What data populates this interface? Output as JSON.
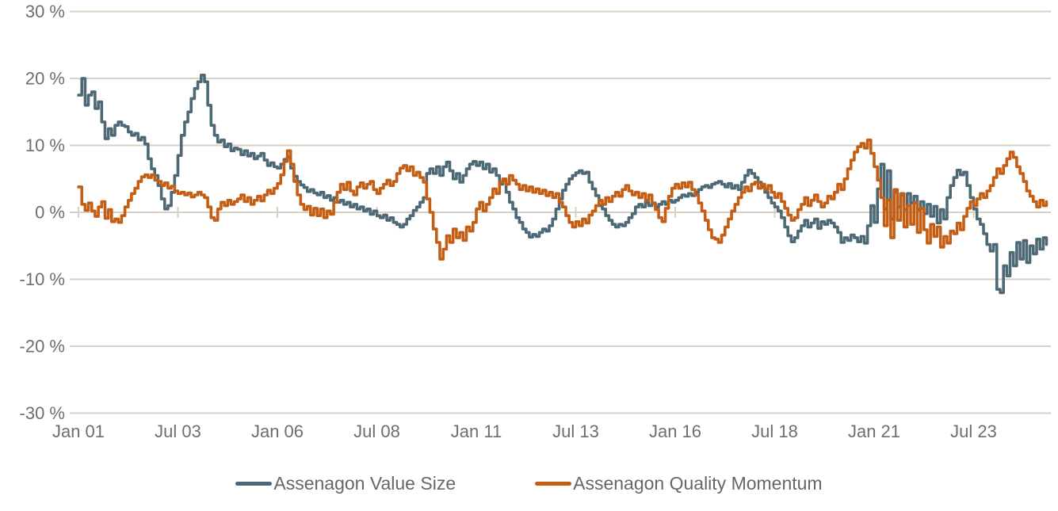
{
  "chart_data": {
    "type": "line",
    "title": "",
    "background": "#ffffff",
    "grid_color": "#d8d1c3",
    "label_color": "#6e6e6e",
    "x_axis": {
      "start": "Jan 2001",
      "end": "May 2025",
      "points_per_year": 12,
      "tick_labels": [
        "Jan 01",
        "Jul 03",
        "Jan 06",
        "Jul 08",
        "Jan 11",
        "Jul 13",
        "Jan 16",
        "Jul 18",
        "Jan 21",
        "Jul 23"
      ],
      "tick_month_index": [
        0,
        30,
        60,
        90,
        120,
        150,
        180,
        210,
        240,
        270
      ]
    },
    "y_axis": {
      "unit": "%",
      "range": [
        -30,
        30
      ],
      "tick_values": [
        30,
        20,
        10,
        0,
        -10,
        -20,
        -30
      ],
      "tick_labels": [
        "30 %",
        "20 %",
        "10 %",
        "0 %",
        "-10 %",
        "-20 %",
        "-30 %"
      ],
      "grid": true
    },
    "legend_position": "bottom",
    "series": [
      {
        "name": "Assenagon Value Size",
        "color": "#4d6975",
        "values": [
          17.5,
          20.0,
          16.0,
          17.5,
          18.0,
          15.5,
          16.5,
          13.5,
          11.0,
          12.5,
          11.5,
          13.0,
          13.5,
          13.0,
          12.8,
          12.0,
          11.5,
          11.8,
          10.8,
          11.2,
          10.2,
          8.0,
          6.5,
          5.5,
          4.0,
          2.0,
          0.5,
          1.0,
          3.0,
          5.5,
          8.5,
          11.5,
          13.5,
          15.0,
          17.0,
          18.5,
          19.5,
          20.5,
          19.5,
          16.0,
          13.0,
          11.5,
          10.5,
          10.8,
          9.8,
          10.2,
          9.2,
          9.6,
          9.4,
          8.6,
          9.2,
          8.4,
          8.8,
          8.0,
          8.4,
          8.8,
          7.8,
          7.0,
          7.4,
          6.8,
          6.6,
          7.2,
          7.9,
          8.3,
          6.6,
          5.4,
          4.6,
          4.1,
          3.7,
          3.1,
          3.4,
          2.9,
          2.6,
          3.0,
          2.2,
          2.5,
          1.8,
          2.2,
          1.5,
          1.8,
          1.2,
          1.5,
          0.8,
          1.2,
          0.5,
          0.8,
          0.2,
          0.5,
          -0.3,
          0.2,
          -0.5,
          -0.8,
          -0.4,
          -1.2,
          -0.8,
          -1.5,
          -1.8,
          -2.2,
          -1.8,
          -1.0,
          -0.5,
          0.3,
          0.8,
          1.5,
          2.2,
          5.8,
          6.5,
          5.8,
          6.8,
          5.5,
          6.8,
          7.5,
          6.2,
          5.0,
          5.8,
          4.5,
          5.5,
          6.5,
          7.2,
          7.6,
          7.0,
          7.5,
          6.5,
          7.2,
          6.0,
          6.5,
          5.5,
          4.2,
          4.8,
          3.0,
          1.5,
          0.5,
          -0.8,
          -1.5,
          -2.5,
          -3.0,
          -3.7,
          -3.3,
          -3.6,
          -3.0,
          -2.5,
          -2.8,
          -2.0,
          -1.0,
          0.5,
          2.0,
          3.3,
          4.2,
          5.0,
          5.5,
          5.9,
          6.2,
          5.8,
          6.0,
          4.5,
          3.5,
          2.5,
          1.0,
          0.5,
          -0.5,
          -1.2,
          -1.8,
          -2.2,
          -1.8,
          -2.0,
          -1.5,
          -0.8,
          -0.2,
          0.8,
          1.2,
          0.8,
          1.5,
          1.0,
          1.4,
          0.8,
          1.2,
          1.6,
          1.2,
          1.8,
          1.5,
          1.8,
          2.2,
          2.6,
          2.4,
          2.8,
          2.5,
          3.0,
          3.4,
          3.8,
          4.0,
          3.7,
          4.2,
          4.4,
          4.6,
          4.2,
          3.8,
          4.3,
          3.6,
          4.0,
          3.4,
          4.5,
          5.5,
          6.3,
          5.8,
          5.2,
          4.5,
          3.8,
          3.0,
          2.2,
          1.4,
          0.8,
          0.2,
          -0.8,
          -2.2,
          -3.5,
          -4.4,
          -3.8,
          -2.8,
          -2.0,
          -1.2,
          -2.2,
          -1.6,
          -1.0,
          -2.4,
          -1.4,
          -1.8,
          -1.2,
          -1.6,
          -2.2,
          -3.0,
          -4.5,
          -3.8,
          -4.2,
          -3.4,
          -3.8,
          -4.4,
          -3.6,
          -4.6,
          -2.0,
          1.0,
          -1.5,
          3.5,
          7.2,
          0.5,
          6.2,
          -1.0,
          3.0,
          0.8,
          2.6,
          0.4,
          2.8,
          1.4,
          2.4,
          0.4,
          1.6,
          -0.2,
          1.2,
          -0.6,
          0.9,
          -1.6,
          0.4,
          -1.0,
          2.2,
          4.0,
          5.2,
          6.3,
          5.6,
          6.0,
          4.0,
          2.2,
          0.5,
          -1.0,
          -1.8,
          -3.2,
          -4.8,
          -5.8,
          -4.8,
          -11.5,
          -12.0,
          -8.0,
          -9.5,
          -6.0,
          -8.0,
          -4.5,
          -7.0,
          -4.2,
          -7.5,
          -5.0,
          -6.2,
          -4.0,
          -5.5,
          -3.8,
          -4.8
        ]
      },
      {
        "name": "Assenagon Quality Momentum",
        "color": "#c45e14",
        "values": [
          3.8,
          1.2,
          0.3,
          1.4,
          0.2,
          -0.6,
          0.8,
          1.6,
          -0.9,
          0.4,
          -1.4,
          -1.0,
          -1.5,
          -0.5,
          0.8,
          1.8,
          2.8,
          3.6,
          4.6,
          5.3,
          5.6,
          5.2,
          5.6,
          4.8,
          4.6,
          4.0,
          4.4,
          3.6,
          3.9,
          3.2,
          2.8,
          3.0,
          2.6,
          2.9,
          2.3,
          2.6,
          3.0,
          2.6,
          2.2,
          0.8,
          -0.8,
          -1.2,
          0.5,
          1.5,
          1.0,
          1.8,
          1.2,
          1.6,
          2.0,
          2.6,
          1.6,
          2.2,
          1.2,
          1.8,
          2.4,
          1.7,
          2.6,
          3.3,
          2.8,
          3.6,
          4.3,
          5.6,
          7.6,
          9.2,
          7.2,
          4.6,
          2.6,
          1.2,
          0.4,
          0.9,
          -0.4,
          0.6,
          -0.5,
          0.5,
          -0.8,
          0.2,
          -0.3,
          1.5,
          3.0,
          4.2,
          3.4,
          4.5,
          3.2,
          2.6,
          3.8,
          4.4,
          3.6,
          4.2,
          4.6,
          3.4,
          2.8,
          3.6,
          4.2,
          4.8,
          4.0,
          4.6,
          5.8,
          6.6,
          7.0,
          6.2,
          6.8,
          5.5,
          6.0,
          5.2,
          4.5,
          2.0,
          0.0,
          -2.5,
          -4.5,
          -7.0,
          -5.5,
          -3.5,
          -4.5,
          -2.5,
          -3.8,
          -3.0,
          -4.2,
          -2.2,
          -2.8,
          -1.5,
          0.5,
          1.5,
          0.2,
          1.2,
          2.2,
          3.5,
          2.8,
          4.5,
          5.0,
          4.2,
          5.5,
          4.8,
          4.2,
          3.4,
          4.0,
          3.2,
          3.8,
          3.0,
          3.5,
          2.8,
          3.3,
          2.5,
          3.0,
          2.2,
          2.8,
          1.5,
          0.8,
          -0.5,
          -1.5,
          -2.2,
          -1.4,
          -2.0,
          -1.0,
          -1.6,
          -0.4,
          0.2,
          1.0,
          1.8,
          1.2,
          2.2,
          1.6,
          2.4,
          3.0,
          2.4,
          3.4,
          4.0,
          3.2,
          2.6,
          3.0,
          2.2,
          2.8,
          1.8,
          2.6,
          1.4,
          0.4,
          -0.8,
          -1.4,
          0.6,
          2.4,
          3.6,
          4.2,
          3.6,
          4.4,
          3.8,
          4.5,
          3.4,
          2.6,
          1.4,
          0.2,
          -1.2,
          -2.6,
          -3.8,
          -4.0,
          -4.5,
          -3.4,
          -2.2,
          -1.0,
          0.2,
          1.2,
          2.2,
          3.0,
          3.8,
          3.2,
          4.2,
          4.5,
          3.6,
          4.2,
          3.4,
          4.0,
          3.0,
          2.2,
          2.8,
          1.6,
          0.6,
          -0.4,
          -1.2,
          -0.8,
          0.4,
          1.2,
          2.2,
          1.0,
          1.8,
          2.6,
          1.6,
          0.8,
          1.4,
          2.4,
          2.0,
          3.0,
          4.2,
          3.4,
          5.0,
          6.5,
          7.8,
          9.0,
          9.8,
          10.3,
          9.6,
          10.8,
          8.8,
          6.8,
          4.8,
          2.2,
          -2.0,
          1.8,
          -3.8,
          3.4,
          -1.2,
          2.8,
          -2.2,
          1.0,
          -1.8,
          1.4,
          -3.0,
          0.6,
          -2.6,
          -4.6,
          -1.8,
          -3.6,
          -2.2,
          -5.2,
          -3.6,
          -4.6,
          -2.8,
          -3.2,
          -1.6,
          -2.6,
          -0.6,
          0.6,
          1.6,
          1.0,
          2.0,
          2.8,
          2.2,
          3.2,
          4.0,
          5.2,
          6.5,
          5.8,
          7.0,
          8.0,
          9.0,
          8.2,
          6.8,
          5.8,
          4.6,
          3.2,
          2.4,
          1.6,
          0.8,
          1.8,
          1.0,
          1.6
        ]
      }
    ]
  }
}
